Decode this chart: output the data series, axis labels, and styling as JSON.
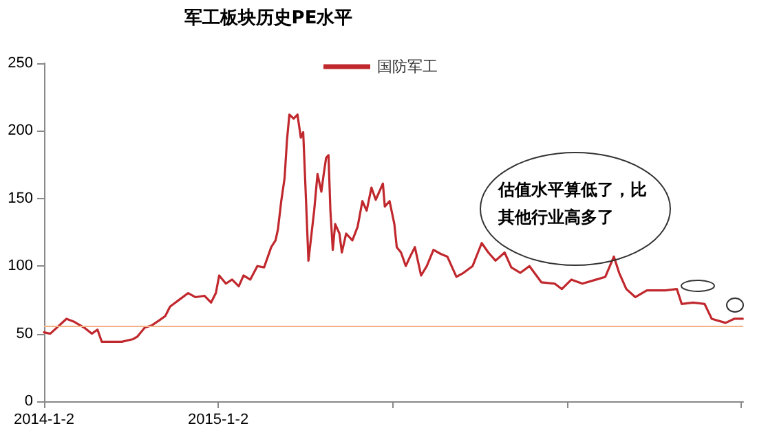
{
  "chart_data": {
    "type": "line",
    "title": "军工板块历史PE水平",
    "x": [
      "2014-01-02",
      "2014-01-15",
      "2014-02-18",
      "2014-03-05",
      "2014-03-29",
      "2014-04-12",
      "2014-04-24",
      "2014-05-03",
      "2014-06-14",
      "2014-07-08",
      "2014-07-17",
      "2014-08-01",
      "2014-08-15",
      "2014-08-30",
      "2014-09-13",
      "2014-09-23",
      "2014-10-12",
      "2014-10-31",
      "2014-11-15",
      "2014-12-04",
      "2014-12-18",
      "2014-12-28",
      "2015-01-04",
      "2015-01-18",
      "2015-01-31",
      "2015-02-14",
      "2015-02-24",
      "2015-03-10",
      "2015-03-25",
      "2015-04-08",
      "2015-04-23",
      "2015-05-02",
      "2015-05-07",
      "2015-05-14",
      "2015-05-21",
      "2015-05-26",
      "2015-05-31",
      "2015-06-09",
      "2015-06-17",
      "2015-06-24",
      "2015-06-29",
      "2015-07-03",
      "2015-07-10",
      "2015-07-22",
      "2015-07-29",
      "2015-08-06",
      "2015-08-11",
      "2015-08-16",
      "2015-08-21",
      "2015-08-25",
      "2015-08-30",
      "2015-09-04",
      "2015-09-13",
      "2015-09-18",
      "2015-09-27",
      "2015-10-10",
      "2015-10-21",
      "2015-10-31",
      "2015-11-09",
      "2015-11-19",
      "2015-11-28",
      "2015-12-13",
      "2015-12-17",
      "2015-12-27",
      "2016-01-06",
      "2016-01-11",
      "2016-01-20",
      "2016-01-30",
      "2016-02-08",
      "2016-02-18",
      "2016-03-02",
      "2016-03-14",
      "2016-03-28",
      "2016-04-12",
      "2016-04-26",
      "2016-05-15",
      "2016-05-30",
      "2016-06-18",
      "2016-07-07",
      "2016-07-21",
      "2016-08-05",
      "2016-08-24",
      "2016-09-07",
      "2016-09-26",
      "2016-10-15",
      "2016-11-09",
      "2016-12-07",
      "2016-12-22",
      "2017-01-11",
      "2017-02-03",
      "2017-03-04",
      "2017-03-23",
      "2017-04-10",
      "2017-04-21",
      "2017-05-06",
      "2017-05-25",
      "2017-06-18",
      "2017-07-27",
      "2017-08-20",
      "2017-08-30",
      "2017-09-23",
      "2017-10-17",
      "2017-11-01",
      "2017-11-30",
      "2017-12-18",
      "2018-01-05"
    ],
    "series": [
      {
        "name": "国防军工",
        "color": "#c0282d",
        "values": [
          51,
          50,
          61,
          59,
          54,
          50,
          53,
          44,
          44,
          46,
          48,
          54.5,
          56,
          59.5,
          63,
          70,
          75,
          80,
          77,
          78,
          73,
          80,
          93,
          87,
          90,
          85,
          93,
          90,
          100,
          99,
          114,
          119,
          127,
          148,
          165,
          193,
          212,
          209,
          212,
          195,
          199,
          165,
          104,
          141,
          168,
          155,
          168,
          180,
          182,
          141,
          112,
          131,
          124,
          110,
          124,
          119,
          129,
          148,
          141,
          158,
          149,
          161,
          144,
          148,
          131,
          114,
          110,
          100,
          107,
          114,
          93,
          100,
          112,
          109,
          107,
          92,
          95,
          100,
          117,
          110,
          104,
          110,
          99,
          95,
          100,
          88,
          87,
          83,
          90,
          87,
          90,
          92,
          107,
          95,
          83,
          77,
          82,
          82,
          83,
          72,
          73,
          72,
          61,
          58,
          61,
          61
        ]
      }
    ],
    "xlim": [
      "2014-01-02",
      "2018-01-06"
    ],
    "xticks": [
      {
        "value": "2014-01-02",
        "label": "2014-1-2"
      },
      {
        "value": "2015-01-02",
        "label": "2015-1-2"
      },
      {
        "value": "2016-01-02",
        "label": null
      },
      {
        "value": "2017-01-02",
        "label": null
      },
      {
        "value": "2018-01-02",
        "label": null
      }
    ],
    "ylim": [
      0,
      250
    ],
    "yticks": [
      0,
      50,
      100,
      150,
      200,
      250
    ],
    "ref_lines": [
      {
        "axis": "y",
        "value": 56,
        "color": "#f4b183"
      }
    ],
    "annotations": [
      "估值水平算低了，比其他行业高多了"
    ],
    "legend": "top",
    "grid": false,
    "marker": "none",
    "line_style": "solid"
  }
}
